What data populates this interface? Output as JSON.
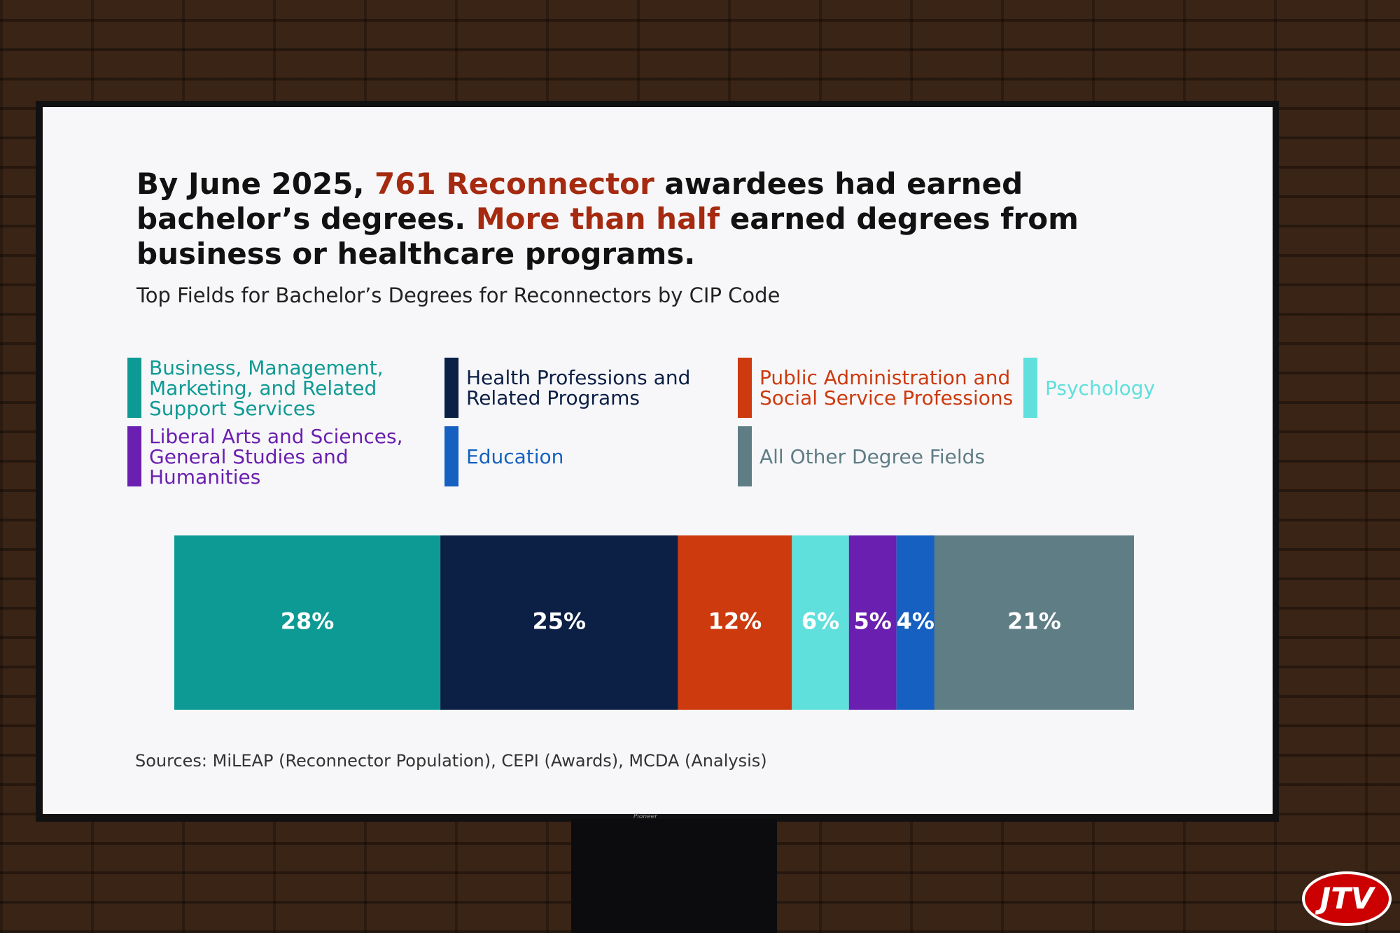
{
  "chart_data": {
    "type": "stacked-bar",
    "title": [
      {
        "text": "By June 2025, ",
        "color": "#111111"
      },
      {
        "text": "761 Reconnector",
        "color": "#a52a10"
      },
      {
        "text": " awardees had earned bachelor’s degrees. ",
        "color": "#111111"
      },
      {
        "text": "More than half",
        "color": "#a52a10"
      },
      {
        "text": " earned degrees from business or healthcare programs.",
        "color": "#111111"
      }
    ],
    "subtitle": "Top Fields for Bachelor’s Degrees for Reconnectors by CIP Code",
    "series": [
      {
        "name": "Business, Management, Marketing, and Related Support Services",
        "color": "#0e9a94",
        "values": [
          28
        ],
        "value_labels": [
          "28%"
        ]
      },
      {
        "name": "Health Professions and Related Programs",
        "color": "#0c1f45",
        "values": [
          25
        ],
        "value_labels": [
          "25%"
        ]
      },
      {
        "name": "Public Administration and Social Service Professions",
        "color": "#cc3a0e",
        "values": [
          12
        ],
        "value_labels": [
          "12%"
        ]
      },
      {
        "name": "Psychology",
        "color": "#5fe0dc",
        "values": [
          6
        ],
        "value_labels": [
          "6%"
        ]
      },
      {
        "name": "Liberal Arts and Sciences, General Studies and Humanities",
        "color": "#6a1fb0",
        "values": [
          5
        ],
        "value_labels": [
          "5%"
        ]
      },
      {
        "name": "Education",
        "color": "#1560c0",
        "values": [
          4
        ],
        "value_labels": [
          "4%"
        ]
      },
      {
        "name": "All Other Degree Fields",
        "color": "#5e7d85",
        "values": [
          21
        ],
        "value_labels": [
          "21%"
        ]
      }
    ],
    "source": "Sources: MiLEAP (Reconnector Population), CEPI (Awards), MCDA (Analysis)"
  },
  "brand": "Pioneer",
  "watermark": "JTV"
}
